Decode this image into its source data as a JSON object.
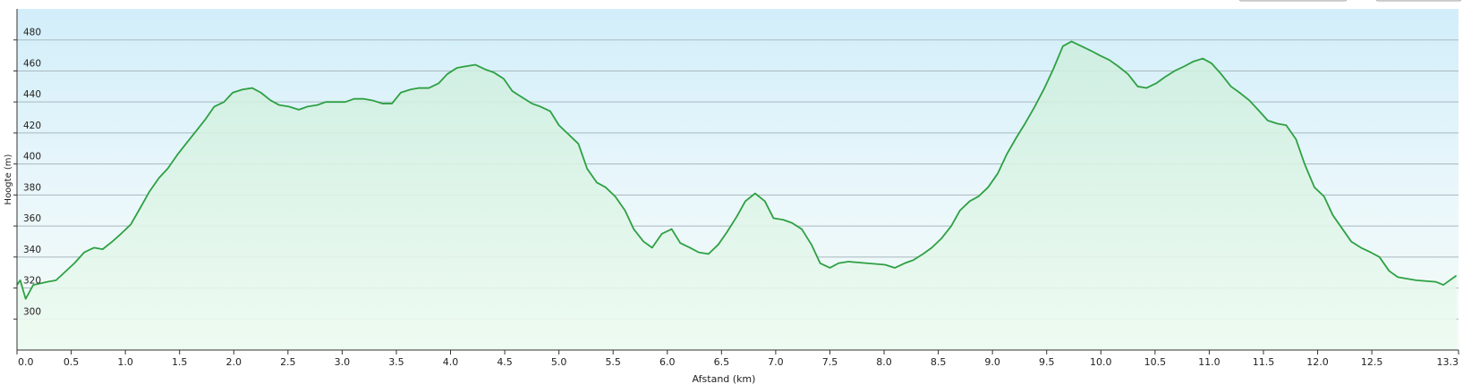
{
  "chart_data": {
    "type": "line",
    "xlabel": "Afstand  (km)",
    "ylabel": "Hoogte (m)",
    "xlim": [
      0,
      13.3
    ],
    "ylim": [
      280,
      500
    ],
    "xticks": [
      {
        "value": 0,
        "label": "0.0"
      },
      0.5,
      {
        "value": 1,
        "label": "1.0"
      },
      1.5,
      {
        "value": 2,
        "label": "2.0"
      },
      2.5,
      {
        "value": 3,
        "label": "3.0"
      },
      3.5,
      {
        "value": 4,
        "label": "4.0"
      },
      4.5,
      {
        "value": 5,
        "label": "5.0"
      },
      5.5,
      {
        "value": 6,
        "label": "6.0"
      },
      6.5,
      {
        "value": 7,
        "label": "7.0"
      },
      7.5,
      {
        "value": 8,
        "label": "8.0"
      },
      8.5,
      {
        "value": 9,
        "label": "9.0"
      },
      9.5,
      {
        "value": 10,
        "label": "10.0"
      },
      10.5,
      {
        "value": 11,
        "label": "11.0"
      },
      11.5,
      {
        "value": 12,
        "label": "12.0"
      },
      12.5,
      13.3
    ],
    "yticks": [
      300,
      320,
      340,
      360,
      380,
      400,
      420,
      440,
      460,
      480
    ],
    "grid": true,
    "x": [
      0,
      0.03,
      0.08,
      0.15,
      0.28,
      0.36,
      0.53,
      0.62,
      0.71,
      0.79,
      0.88,
      0.96,
      1.05,
      1.14,
      1.22,
      1.31,
      1.39,
      1.48,
      1.57,
      1.65,
      1.74,
      1.82,
      1.91,
      1.99,
      2.08,
      2.17,
      2.25,
      2.34,
      2.42,
      2.51,
      2.6,
      2.68,
      2.77,
      2.85,
      2.94,
      3.03,
      3.11,
      3.2,
      3.28,
      3.37,
      3.46,
      3.54,
      3.63,
      3.71,
      3.8,
      3.89,
      3.97,
      4.06,
      4.14,
      4.23,
      4.32,
      4.4,
      4.49,
      4.57,
      4.66,
      4.75,
      4.83,
      4.92,
      5.0,
      5.09,
      5.18,
      5.26,
      5.35,
      5.43,
      5.52,
      5.61,
      5.69,
      5.78,
      5.86,
      5.95,
      6.04,
      6.12,
      6.21,
      6.29,
      6.38,
      6.47,
      6.55,
      6.64,
      6.72,
      6.81,
      6.9,
      6.98,
      7.07,
      7.15,
      7.24,
      7.33,
      7.41,
      7.5,
      7.58,
      7.67,
      7.84,
      8.01,
      8.1,
      8.19,
      8.27,
      8.36,
      8.44,
      8.53,
      8.62,
      8.7,
      8.79,
      8.87,
      8.96,
      9.05,
      9.13,
      9.22,
      9.3,
      9.39,
      9.48,
      9.56,
      9.65,
      9.73,
      9.82,
      9.91,
      9.99,
      10.08,
      10.16,
      10.25,
      10.34,
      10.42,
      10.51,
      10.59,
      10.68,
      10.77,
      10.85,
      10.94,
      11.02,
      11.11,
      11.2,
      11.28,
      11.37,
      11.45,
      11.54,
      11.63,
      11.71,
      11.8,
      11.88,
      11.97,
      12.06,
      12.14,
      12.23,
      12.31,
      12.4,
      12.49,
      12.57,
      12.66,
      12.74,
      12.91,
      13.09,
      13.16,
      13.28
    ],
    "series": [
      {
        "color": "#2ea043",
        "values": [
          322,
          325,
          313,
          322,
          324,
          325,
          336,
          343,
          346,
          345,
          350,
          355,
          361,
          372,
          382,
          391,
          397,
          406,
          414,
          421,
          429,
          437,
          440,
          446,
          448,
          449,
          446,
          441,
          438,
          437,
          435,
          437,
          438,
          440,
          440,
          440,
          442,
          442,
          441,
          439,
          439,
          446,
          448,
          449,
          449,
          452,
          458,
          462,
          463,
          464,
          461,
          459,
          455,
          447,
          443,
          439,
          437,
          434,
          425,
          419,
          413,
          397,
          388,
          385,
          379,
          370,
          358,
          350,
          346,
          355,
          358,
          349,
          346,
          343,
          342,
          348,
          356,
          366,
          376,
          381,
          376,
          365,
          364,
          362,
          358,
          348,
          336,
          333,
          336,
          337,
          336,
          335,
          333,
          336,
          338,
          342,
          346,
          352,
          360,
          370,
          376,
          379,
          385,
          394,
          406,
          417,
          426,
          437,
          449,
          461,
          476,
          479,
          476,
          473,
          470,
          467,
          463,
          458,
          450,
          449,
          452,
          456,
          460,
          463,
          466,
          468,
          465,
          458,
          450,
          446,
          441,
          435,
          428,
          426,
          425,
          416,
          400,
          385,
          379,
          367,
          358,
          350,
          346,
          343,
          340,
          331,
          327,
          325,
          324,
          322,
          328
        ]
      }
    ]
  }
}
